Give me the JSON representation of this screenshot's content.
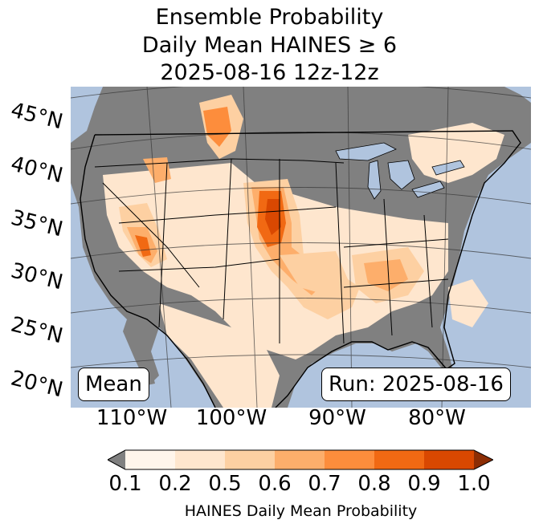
{
  "title": {
    "line1": "Ensemble Probability",
    "line2": "Daily Mean HAINES ≥ 6",
    "line3": "2025-08-16 12z-12z"
  },
  "map": {
    "ocean_color": "#b0c4de",
    "land_missing_color": "#808080",
    "lat_labels": [
      "45°N",
      "40°N",
      "35°N",
      "30°N",
      "25°N",
      "20°N"
    ],
    "lon_labels": [
      "110°W",
      "100°W",
      "90°W",
      "80°W"
    ],
    "stat_box": "Mean",
    "run_box": "Run: 2025-08-16"
  },
  "colorbar": {
    "label": "HAINES Daily Mean Probability",
    "ticks": [
      "0.1",
      "0.2",
      "0.5",
      "0.6",
      "0.7",
      "0.8",
      "0.9",
      "1.0"
    ],
    "colors": [
      "#808080",
      "#fff5eb",
      "#fee6ce",
      "#fdd0a2",
      "#fdae6b",
      "#fd8d3c",
      "#f16913",
      "#d94801",
      "#8c2d04"
    ]
  }
}
